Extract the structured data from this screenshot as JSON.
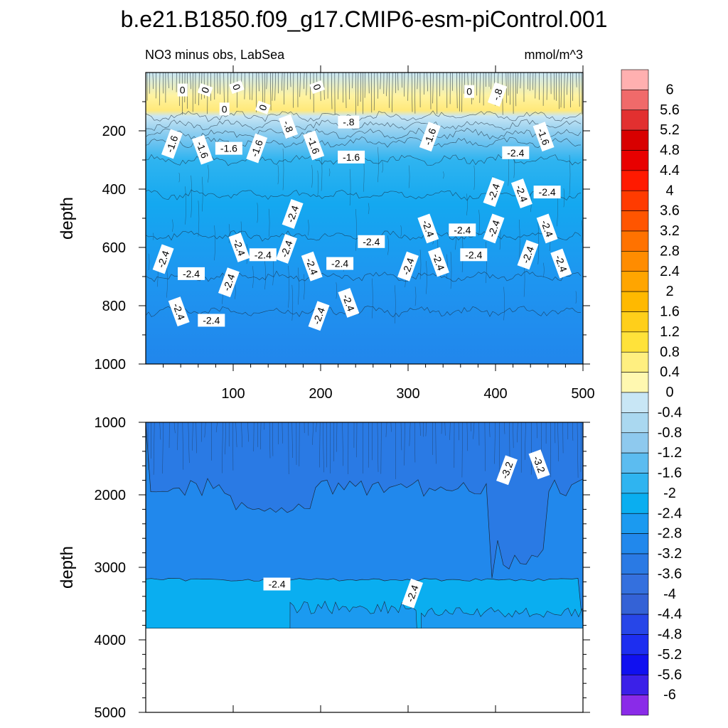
{
  "title": "b.e21.B1850.f09_g17.CMIP6-esm-piControl.001",
  "subtitle_left": "NO3 minus obs, LabSea",
  "subtitle_right": "mmol/m^3",
  "colors": {
    "background": "#ffffff",
    "lines": "#1a2a3a"
  },
  "chart_data": [
    {
      "type": "heatmap",
      "name": "upper-panel",
      "xlabel": "",
      "ylabel": "depth",
      "xlim": [
        0,
        500
      ],
      "ylim": [
        1000,
        0
      ],
      "x_ticks": [
        "100",
        "200",
        "300",
        "400",
        "500"
      ],
      "y_ticks": [
        "200",
        "400",
        "600",
        "800",
        "1000"
      ],
      "contour_labels": [
        {
          "text": "0",
          "x": 42,
          "y": 60
        },
        {
          "text": "0",
          "x": 68,
          "y": 60
        },
        {
          "text": "0",
          "x": 104,
          "y": 50
        },
        {
          "text": "0",
          "x": 90,
          "y": 125
        },
        {
          "text": "0",
          "x": 134,
          "y": 120
        },
        {
          "text": "0",
          "x": 196,
          "y": 50
        },
        {
          "text": "0",
          "x": 370,
          "y": 65
        },
        {
          "text": "-.8",
          "x": 402,
          "y": 75
        },
        {
          "text": "-.8",
          "x": 163,
          "y": 185
        },
        {
          "text": "-.8",
          "x": 232,
          "y": 170
        },
        {
          "text": "-1.6",
          "x": 30,
          "y": 245
        },
        {
          "text": "-1.6",
          "x": 65,
          "y": 265
        },
        {
          "text": "-1.6",
          "x": 95,
          "y": 260
        },
        {
          "text": "-1.6",
          "x": 127,
          "y": 260
        },
        {
          "text": "-1.6",
          "x": 192,
          "y": 250
        },
        {
          "text": "-1.6",
          "x": 235,
          "y": 290
        },
        {
          "text": "-1.6",
          "x": 325,
          "y": 220
        },
        {
          "text": "-1.6",
          "x": 455,
          "y": 220
        },
        {
          "text": "-2.4",
          "x": 423,
          "y": 275
        },
        {
          "text": "-2.4",
          "x": 398,
          "y": 410
        },
        {
          "text": "-2.4",
          "x": 430,
          "y": 415
        },
        {
          "text": "-2.4",
          "x": 459,
          "y": 410
        },
        {
          "text": "-2.4",
          "x": 168,
          "y": 485
        },
        {
          "text": "-2.4",
          "x": 323,
          "y": 535
        },
        {
          "text": "-2.4",
          "x": 362,
          "y": 540
        },
        {
          "text": "-2.4",
          "x": 398,
          "y": 535
        },
        {
          "text": "-2.4",
          "x": 459,
          "y": 535
        },
        {
          "text": "-2.4",
          "x": 258,
          "y": 580
        },
        {
          "text": "-2.4",
          "x": 20,
          "y": 640
        },
        {
          "text": "-2.4",
          "x": 107,
          "y": 600
        },
        {
          "text": "-2.4",
          "x": 134,
          "y": 625
        },
        {
          "text": "-2.4",
          "x": 161,
          "y": 605
        },
        {
          "text": "-2.4",
          "x": 190,
          "y": 665
        },
        {
          "text": "-2.4",
          "x": 222,
          "y": 655
        },
        {
          "text": "-2.4",
          "x": 300,
          "y": 665
        },
        {
          "text": "-2.4",
          "x": 335,
          "y": 650
        },
        {
          "text": "-2.4",
          "x": 375,
          "y": 625
        },
        {
          "text": "-2.4",
          "x": 437,
          "y": 625
        },
        {
          "text": "-2.4",
          "x": 475,
          "y": 655
        },
        {
          "text": "-2.4",
          "x": 52,
          "y": 690
        },
        {
          "text": "-2.4",
          "x": 95,
          "y": 720
        },
        {
          "text": "-2.4",
          "x": 38,
          "y": 820
        },
        {
          "text": "-2.4",
          "x": 75,
          "y": 850
        },
        {
          "text": "-2.4",
          "x": 198,
          "y": 835
        },
        {
          "text": "-2.4",
          "x": 232,
          "y": 790
        }
      ]
    },
    {
      "type": "heatmap",
      "name": "lower-panel",
      "xlabel": "",
      "ylabel": "depth",
      "xlim": [
        0,
        500
      ],
      "ylim": [
        5000,
        1000
      ],
      "y_ticks": [
        "1000",
        "2000",
        "3000",
        "4000",
        "5000"
      ],
      "data_bottom_depth": 3840,
      "contour_labels": [
        {
          "text": "-3.2",
          "x": 413,
          "y": 1660
        },
        {
          "text": "-3.2",
          "x": 450,
          "y": 1580
        },
        {
          "text": "-2.4",
          "x": 150,
          "y": 3230
        },
        {
          "text": "-2.4",
          "x": 305,
          "y": 3360
        }
      ]
    },
    {
      "type": "legend",
      "name": "colorbar",
      "labels": [
        "6",
        "5.6",
        "5.2",
        "4.8",
        "4.4",
        "4",
        "3.6",
        "3.2",
        "2.8",
        "2.4",
        "2",
        "1.6",
        "1.2",
        "0.8",
        "0.4",
        "0",
        "-0.4",
        "-0.8",
        "-1.2",
        "-1.6",
        "-2",
        "-2.4",
        "-2.8",
        "-3.2",
        "-3.6",
        "-4",
        "-4.4",
        "-4.8",
        "-5.2",
        "-5.6",
        "-6"
      ],
      "colors": [
        "#ffb0b0",
        "#f06a6a",
        "#e23030",
        "#d80000",
        "#e80000",
        "#ff1a00",
        "#ff3b00",
        "#ff5500",
        "#ff7200",
        "#ff8c00",
        "#ffa500",
        "#ffb900",
        "#ffcf1a",
        "#ffe23a",
        "#ffef80",
        "#fff8b0",
        "#c8e6f5",
        "#aad8f0",
        "#8ec9ee",
        "#5cbcf0",
        "#2fb4f0",
        "#0aaef0",
        "#1b9af0",
        "#2188ec",
        "#2a7ae4",
        "#3470de",
        "#3462d6",
        "#2746e8",
        "#1d2ef0",
        "#1010f0",
        "#3b20e8",
        "#8a2be8"
      ]
    }
  ]
}
